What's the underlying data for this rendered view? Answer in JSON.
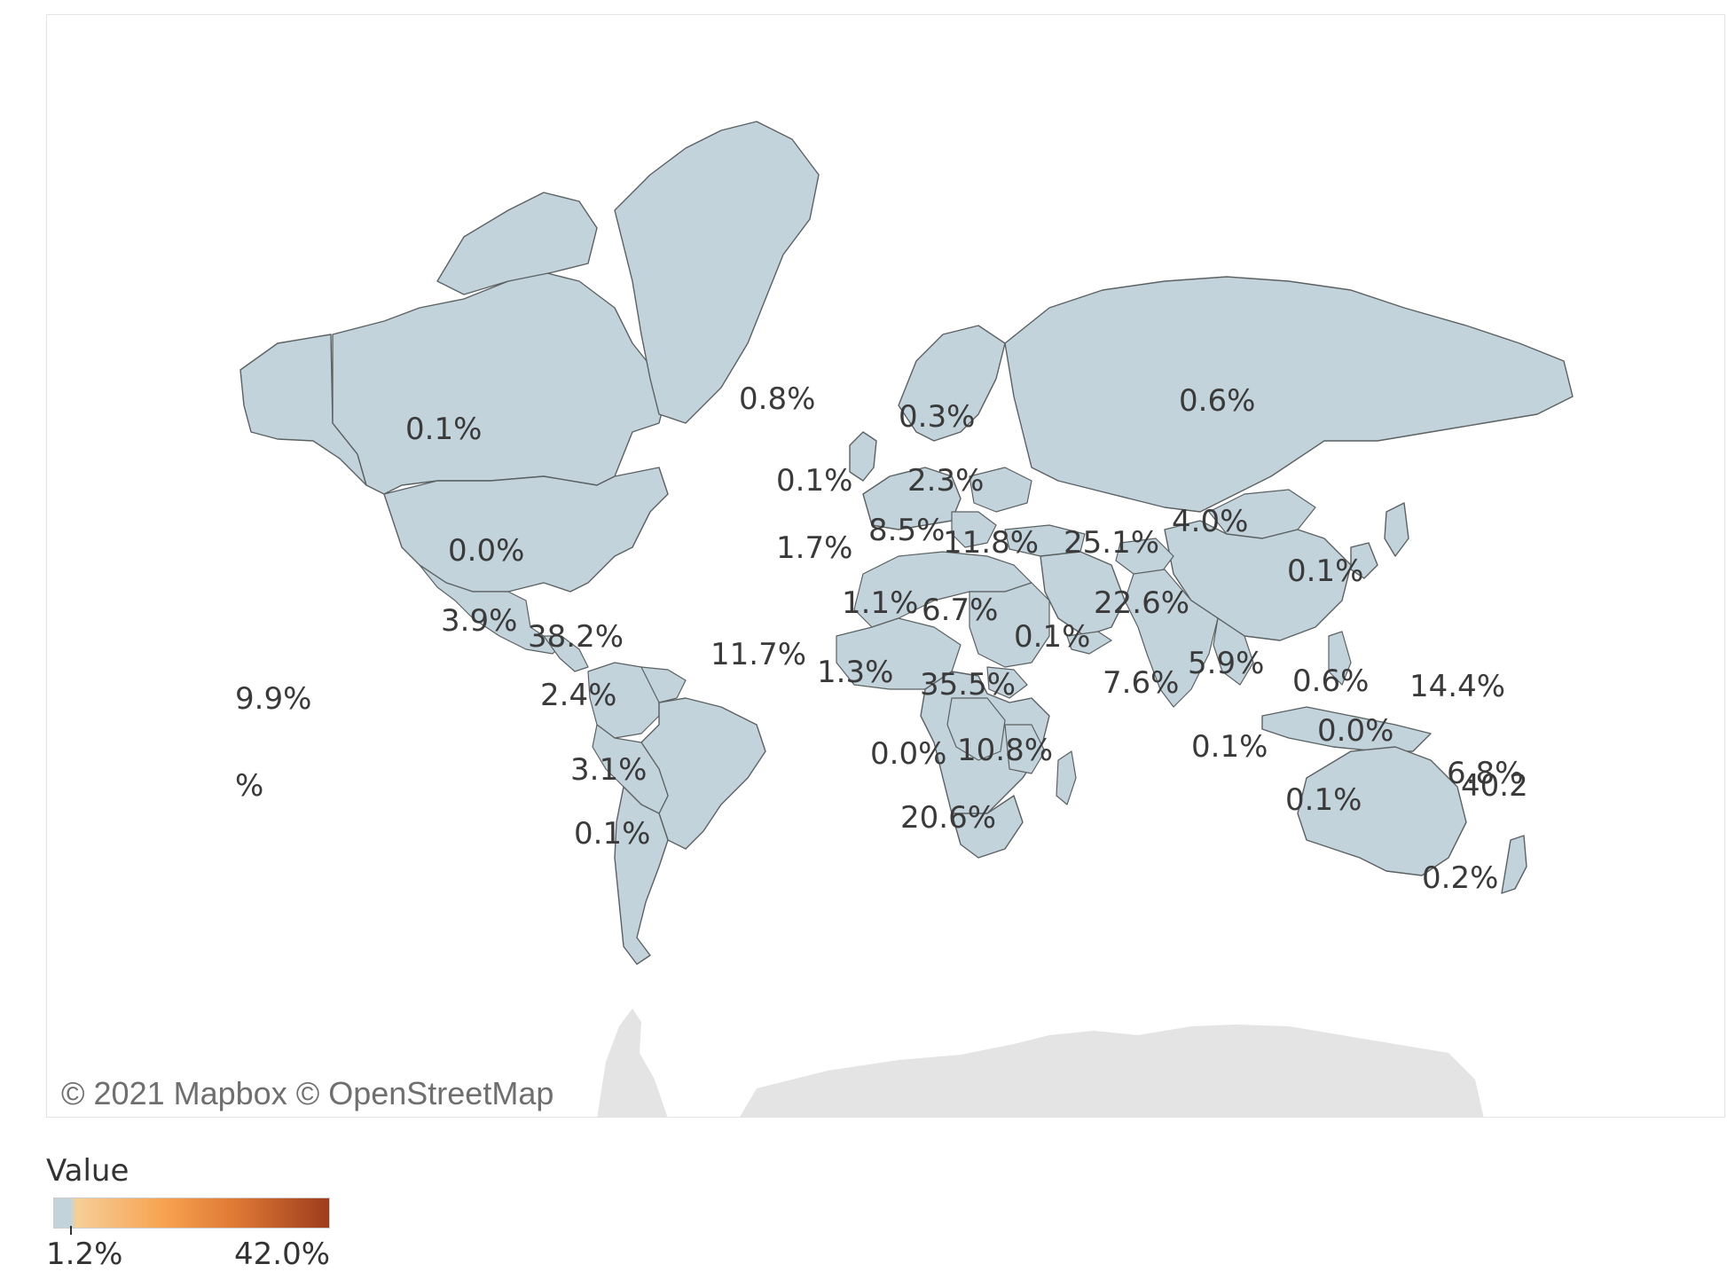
{
  "map": {
    "type": "choropleth",
    "attribution": "© 2021 Mapbox © OpenStreetMap",
    "color_scale": {
      "low": "#c3d3dc",
      "mid": "#f7a24f",
      "high": "#9e3c1e"
    },
    "labels": [
      {
        "id": "canada",
        "text": "0.1%"
      },
      {
        "id": "usa",
        "text": "0.0%"
      },
      {
        "id": "mexico",
        "text": "3.9%"
      },
      {
        "id": "central-america",
        "text": "38.2%"
      },
      {
        "id": "hawaii",
        "text": "9.9%"
      },
      {
        "id": "pacific-west",
        "text": "%"
      },
      {
        "id": "colombia",
        "text": "2.4%"
      },
      {
        "id": "bolivia",
        "text": "3.1%"
      },
      {
        "id": "argentina",
        "text": "0.1%"
      },
      {
        "id": "iceland",
        "text": "0.8%"
      },
      {
        "id": "scandinavia",
        "text": "0.3%"
      },
      {
        "id": "uk",
        "text": "0.1%"
      },
      {
        "id": "ukraine",
        "text": "2.3%"
      },
      {
        "id": "spain",
        "text": "1.7%"
      },
      {
        "id": "balkans",
        "text": "8.5%"
      },
      {
        "id": "turkey",
        "text": "11.8%"
      },
      {
        "id": "afghanistan",
        "text": "25.1%"
      },
      {
        "id": "russia",
        "text": "0.6%"
      },
      {
        "id": "mongolia",
        "text": "4.0%"
      },
      {
        "id": "korea",
        "text": "0.1%"
      },
      {
        "id": "algeria",
        "text": "1.1%"
      },
      {
        "id": "sudan",
        "text": "6.7%"
      },
      {
        "id": "yemen",
        "text": "0.1%"
      },
      {
        "id": "pakistan",
        "text": "22.6%"
      },
      {
        "id": "senegal",
        "text": "11.7%"
      },
      {
        "id": "nigeria",
        "text": "1.3%"
      },
      {
        "id": "south-sudan",
        "text": "35.5%"
      },
      {
        "id": "sri-lanka",
        "text": "7.6%"
      },
      {
        "id": "myanmar",
        "text": "5.9%"
      },
      {
        "id": "philippines",
        "text": "0.6%"
      },
      {
        "id": "micronesia",
        "text": "14.4%"
      },
      {
        "id": "indonesia",
        "text": "0.1%"
      },
      {
        "id": "papua",
        "text": "0.0%"
      },
      {
        "id": "congo",
        "text": "0.0%"
      },
      {
        "id": "tanzania",
        "text": "10.8%"
      },
      {
        "id": "south-africa",
        "text": "20.6%"
      },
      {
        "id": "australia",
        "text": "0.1%"
      },
      {
        "id": "solomon",
        "text": "6.8%"
      },
      {
        "id": "vanuatu",
        "text": "40.2"
      },
      {
        "id": "new-zealand",
        "text": "0.2%"
      }
    ]
  },
  "legend": {
    "title": "Value",
    "min_label": "1.2%",
    "max_label": "42.0%"
  }
}
